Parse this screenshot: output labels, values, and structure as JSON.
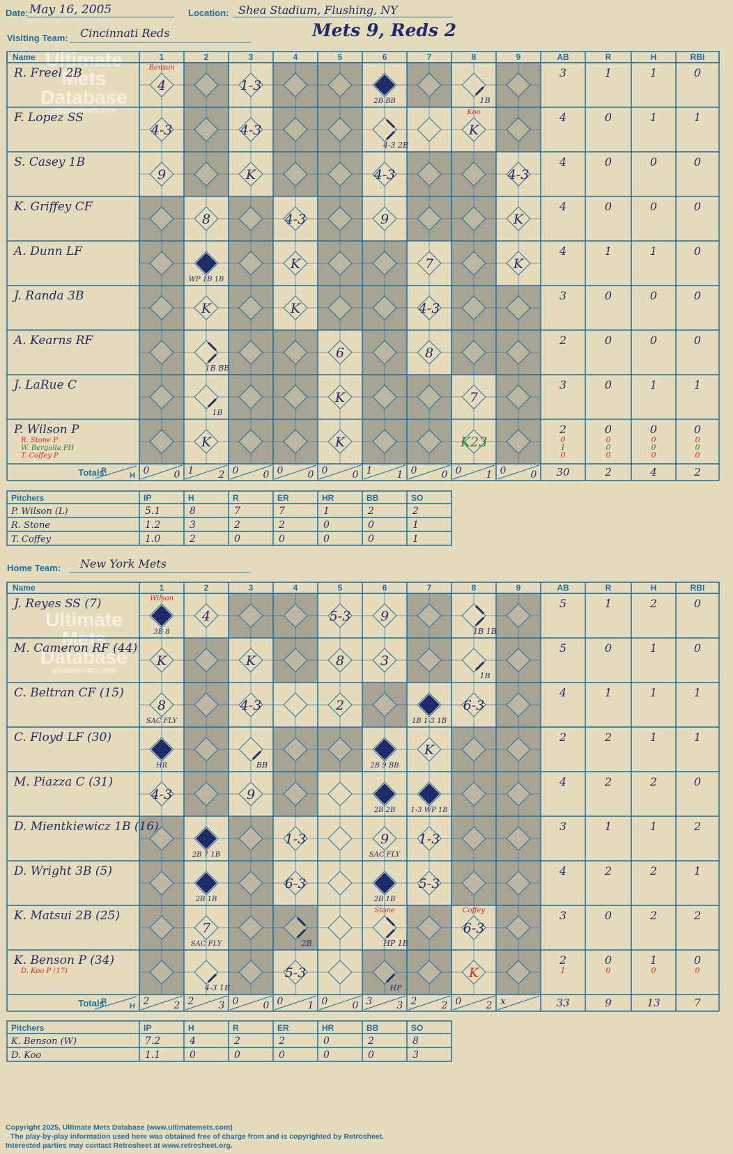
{
  "header": {
    "date_label": "Date:",
    "date": "May 16, 2005",
    "location_label": "Location:",
    "location": "Shea Stadium, Flushing, NY",
    "visiting_label": "Visiting Team:",
    "visiting_team": "Cincinnati Reds",
    "result": "Mets 9, Reds 2",
    "home_label": "Home Team:",
    "home_team": "New York Mets"
  },
  "watermark": {
    "line1": "Ultimate",
    "line2": "Mets",
    "line3": "Database",
    "url": "ultimatemets.com"
  },
  "columns": {
    "name": "Name",
    "innings": [
      "1",
      "2",
      "3",
      "4",
      "5",
      "6",
      "7",
      "8",
      "9"
    ],
    "stats": [
      "AB",
      "R",
      "H",
      "RBI"
    ]
  },
  "totals_label": "Totals:",
  "rh_label": {
    "r": "R",
    "h": "H"
  },
  "pitcher_columns": [
    "Pitchers",
    "IP",
    "H",
    "R",
    "ER",
    "HR",
    "BB",
    "SO"
  ],
  "colors": {
    "background": "#e6dcbc",
    "grid": "#1c6ea4",
    "shaded": "#a8a493",
    "ink": "#1f2c6b",
    "red": "#d62a1e",
    "green": "#2e7d32"
  },
  "visitors": {
    "batters": [
      {
        "name": "R. Freel 2B",
        "ab": "3",
        "r": "1",
        "h": "1",
        "rbi": "0"
      },
      {
        "name": "F. Lopez SS",
        "ab": "4",
        "r": "0",
        "h": "1",
        "rbi": "1"
      },
      {
        "name": "S. Casey 1B",
        "ab": "4",
        "r": "0",
        "h": "0",
        "rbi": "0"
      },
      {
        "name": "K. Griffey CF",
        "ab": "4",
        "r": "0",
        "h": "0",
        "rbi": "0"
      },
      {
        "name": "A. Dunn LF",
        "ab": "4",
        "r": "1",
        "h": "1",
        "rbi": "0"
      },
      {
        "name": "J. Randa 3B",
        "ab": "3",
        "r": "0",
        "h": "0",
        "rbi": "0"
      },
      {
        "name": "A. Kearns RF",
        "ab": "2",
        "r": "0",
        "h": "0",
        "rbi": "0"
      },
      {
        "name": "J. LaRue C",
        "ab": "3",
        "r": "0",
        "h": "1",
        "rbi": "1"
      },
      {
        "name": "P. Wilson P",
        "ab": "2",
        "r": "0",
        "h": "0",
        "rbi": "0",
        "subs": [
          {
            "name": "R. Stone P",
            "color": "red",
            "ab": "0",
            "r": "0",
            "h": "0",
            "rbi": "0"
          },
          {
            "name": "W. Bergolla PH",
            "color": "green",
            "ab": "1",
            "r": "0",
            "h": "0",
            "rbi": "0"
          },
          {
            "name": "T. Coffey P",
            "color": "red",
            "ab": "0",
            "r": "0",
            "h": "0",
            "rbi": "0"
          }
        ]
      }
    ],
    "shaded": [
      [
        2,
        4,
        5,
        7,
        9
      ],
      [
        2,
        4,
        5,
        9
      ],
      [
        2,
        4,
        5,
        7,
        8
      ],
      [
        1,
        3,
        5,
        7,
        8
      ],
      [
        1,
        3,
        5,
        6,
        8
      ],
      [
        1,
        3,
        5,
        6,
        8,
        9
      ],
      [
        1,
        3,
        4,
        6,
        8,
        9
      ],
      [
        1,
        3,
        4,
        6,
        7,
        9
      ],
      [
        1,
        3,
        4,
        6,
        7,
        9
      ]
    ],
    "plays": [
      {
        "row": 0,
        "inn": 1,
        "text": "4",
        "type": "out"
      },
      {
        "row": 0,
        "inn": 1,
        "text": "Benson",
        "type": "note",
        "color": "red"
      },
      {
        "row": 0,
        "inn": 3,
        "text": "1-3",
        "type": "out"
      },
      {
        "row": 0,
        "inn": 6,
        "text": "2B BB",
        "type": "run"
      },
      {
        "row": 0,
        "inn": 8,
        "text": "1B",
        "type": "reach1"
      },
      {
        "row": 1,
        "inn": 1,
        "text": "4-3",
        "type": "out"
      },
      {
        "row": 1,
        "inn": 3,
        "text": "4-3",
        "type": "out"
      },
      {
        "row": 1,
        "inn": 6,
        "text": "4-3 2B",
        "type": "reach2"
      },
      {
        "row": 1,
        "inn": 8,
        "text": "K",
        "type": "out"
      },
      {
        "row": 1,
        "inn": 8,
        "text": "Koo",
        "type": "note",
        "color": "red"
      },
      {
        "row": 2,
        "inn": 1,
        "text": "9",
        "type": "out"
      },
      {
        "row": 2,
        "inn": 3,
        "text": "K",
        "type": "out"
      },
      {
        "row": 2,
        "inn": 6,
        "text": "4-3",
        "type": "out"
      },
      {
        "row": 2,
        "inn": 9,
        "text": "4-3",
        "type": "out"
      },
      {
        "row": 3,
        "inn": 2,
        "text": "8",
        "type": "out"
      },
      {
        "row": 3,
        "inn": 4,
        "text": "4-3",
        "type": "out"
      },
      {
        "row": 3,
        "inn": 6,
        "text": "9",
        "type": "out"
      },
      {
        "row": 3,
        "inn": 9,
        "text": "K",
        "type": "out"
      },
      {
        "row": 4,
        "inn": 2,
        "text": "WP 1B 1B",
        "type": "run"
      },
      {
        "row": 4,
        "inn": 4,
        "text": "K",
        "type": "out"
      },
      {
        "row": 4,
        "inn": 7,
        "text": "7",
        "type": "out"
      },
      {
        "row": 4,
        "inn": 9,
        "text": "K",
        "type": "out"
      },
      {
        "row": 5,
        "inn": 2,
        "text": "K",
        "type": "out"
      },
      {
        "row": 5,
        "inn": 4,
        "text": "K",
        "type": "out"
      },
      {
        "row": 5,
        "inn": 7,
        "text": "4-3",
        "type": "out"
      },
      {
        "row": 6,
        "inn": 2,
        "text": "1B BB",
        "type": "reach2"
      },
      {
        "row": 6,
        "inn": 5,
        "text": "6",
        "type": "out"
      },
      {
        "row": 6,
        "inn": 7,
        "text": "8",
        "type": "out"
      },
      {
        "row": 7,
        "inn": 2,
        "text": "1B",
        "type": "reach1"
      },
      {
        "row": 7,
        "inn": 5,
        "text": "K",
        "type": "out"
      },
      {
        "row": 7,
        "inn": 8,
        "text": "7",
        "type": "out"
      },
      {
        "row": 8,
        "inn": 2,
        "text": "K",
        "type": "out"
      },
      {
        "row": 8,
        "inn": 5,
        "text": "K",
        "type": "out"
      },
      {
        "row": 8,
        "inn": 8,
        "text": "K23",
        "type": "out",
        "color": "green"
      }
    ],
    "inning_totals": [
      [
        "0",
        "0"
      ],
      [
        "1",
        "2"
      ],
      [
        "0",
        "0"
      ],
      [
        "0",
        "0"
      ],
      [
        "0",
        "0"
      ],
      [
        "1",
        "1"
      ],
      [
        "0",
        "0"
      ],
      [
        "0",
        "1"
      ],
      [
        "0",
        "0"
      ]
    ],
    "totals": {
      "ab": "30",
      "r": "2",
      "h": "4",
      "rbi": "2"
    },
    "pitchers": [
      {
        "name": "P. Wilson (L)",
        "ip": "5.1",
        "h": "8",
        "r": "7",
        "er": "7",
        "hr": "1",
        "bb": "2",
        "so": "2"
      },
      {
        "name": "R. Stone",
        "ip": "1.2",
        "h": "3",
        "r": "2",
        "er": "2",
        "hr": "0",
        "bb": "0",
        "so": "1"
      },
      {
        "name": "T. Coffey",
        "ip": "1.0",
        "h": "2",
        "r": "0",
        "er": "0",
        "hr": "0",
        "bb": "0",
        "so": "1"
      }
    ]
  },
  "home": {
    "batters": [
      {
        "name": "J. Reyes SS (7)",
        "ab": "5",
        "r": "1",
        "h": "2",
        "rbi": "0"
      },
      {
        "name": "M. Cameron RF (44)",
        "ab": "5",
        "r": "0",
        "h": "1",
        "rbi": "0"
      },
      {
        "name": "C. Beltran CF (15)",
        "ab": "4",
        "r": "1",
        "h": "1",
        "rbi": "1"
      },
      {
        "name": "C. Floyd LF (30)",
        "ab": "2",
        "r": "2",
        "h": "1",
        "rbi": "1"
      },
      {
        "name": "M. Piazza C (31)",
        "ab": "4",
        "r": "2",
        "h": "2",
        "rbi": "0"
      },
      {
        "name": "D. Mientkiewicz 1B (16)",
        "ab": "3",
        "r": "1",
        "h": "1",
        "rbi": "2"
      },
      {
        "name": "D. Wright 3B (5)",
        "ab": "4",
        "r": "2",
        "h": "2",
        "rbi": "1"
      },
      {
        "name": "K. Matsui 2B (25)",
        "ab": "3",
        "r": "0",
        "h": "2",
        "rbi": "2"
      },
      {
        "name": "K. Benson P (34)",
        "ab": "2",
        "r": "0",
        "h": "1",
        "rbi": "0",
        "subs": [
          {
            "name": "D. Koo P (17)",
            "color": "red",
            "ab": "1",
            "r": "0",
            "h": "0",
            "rbi": "0"
          }
        ]
      }
    ],
    "shaded": [
      [
        3,
        4,
        7,
        9
      ],
      [
        2,
        4,
        7,
        9
      ],
      [
        2,
        6,
        9
      ],
      [
        2,
        4,
        5,
        8,
        9
      ],
      [
        2,
        4,
        8,
        9
      ],
      [
        1,
        3,
        8,
        9
      ],
      [
        1,
        3,
        8,
        9
      ],
      [
        1,
        3,
        4,
        7,
        9
      ],
      [
        1,
        3,
        6,
        7,
        9
      ]
    ],
    "plays": [
      {
        "row": 0,
        "inn": 1,
        "text": "3B 8",
        "type": "run"
      },
      {
        "row": 0,
        "inn": 1,
        "text": "Wilson",
        "type": "note",
        "color": "red"
      },
      {
        "row": 0,
        "inn": 2,
        "text": "4",
        "type": "out"
      },
      {
        "row": 0,
        "inn": 5,
        "text": "5-3",
        "type": "out"
      },
      {
        "row": 0,
        "inn": 6,
        "text": "9",
        "type": "out"
      },
      {
        "row": 0,
        "inn": 8,
        "text": "1B 1B",
        "type": "reach2"
      },
      {
        "row": 1,
        "inn": 1,
        "text": "K",
        "type": "out"
      },
      {
        "row": 1,
        "inn": 3,
        "text": "K",
        "type": "out"
      },
      {
        "row": 1,
        "inn": 5,
        "text": "8",
        "type": "out"
      },
      {
        "row": 1,
        "inn": 6,
        "text": "3",
        "type": "out"
      },
      {
        "row": 1,
        "inn": 8,
        "text": "1B",
        "type": "reach1"
      },
      {
        "row": 2,
        "inn": 1,
        "text": "8",
        "type": "out"
      },
      {
        "row": 2,
        "inn": 1,
        "text": "SAC FLY",
        "type": "sub"
      },
      {
        "row": 2,
        "inn": 3,
        "text": "4-3",
        "type": "out"
      },
      {
        "row": 2,
        "inn": 5,
        "text": "2",
        "type": "out"
      },
      {
        "row": 2,
        "inn": 7,
        "text": "1B 1-3 1B",
        "type": "run"
      },
      {
        "row": 2,
        "inn": 8,
        "text": "6-3",
        "type": "out"
      },
      {
        "row": 3,
        "inn": 1,
        "text": "HR",
        "type": "run"
      },
      {
        "row": 3,
        "inn": 3,
        "text": "BB",
        "type": "reach1"
      },
      {
        "row": 3,
        "inn": 6,
        "text": "2B 9 BB",
        "type": "run"
      },
      {
        "row": 3,
        "inn": 7,
        "text": "K",
        "type": "out"
      },
      {
        "row": 4,
        "inn": 1,
        "text": "4-3",
        "type": "out"
      },
      {
        "row": 4,
        "inn": 3,
        "text": "9",
        "type": "out"
      },
      {
        "row": 4,
        "inn": 6,
        "text": "2B 2B",
        "type": "run"
      },
      {
        "row": 4,
        "inn": 7,
        "text": "1-3 WP 1B",
        "type": "run"
      },
      {
        "row": 5,
        "inn": 2,
        "text": "2B 7 1B",
        "type": "run"
      },
      {
        "row": 5,
        "inn": 4,
        "text": "1-3",
        "type": "out"
      },
      {
        "row": 5,
        "inn": 6,
        "text": "9",
        "type": "out"
      },
      {
        "row": 5,
        "inn": 6,
        "text": "SAC FLY",
        "type": "sub"
      },
      {
        "row": 5,
        "inn": 7,
        "text": "1-3",
        "type": "out"
      },
      {
        "row": 6,
        "inn": 2,
        "text": "2B 1B",
        "type": "run"
      },
      {
        "row": 6,
        "inn": 4,
        "text": "6-3",
        "type": "out"
      },
      {
        "row": 6,
        "inn": 6,
        "text": "2B 1B",
        "type": "run"
      },
      {
        "row": 6,
        "inn": 7,
        "text": "5-3",
        "type": "out"
      },
      {
        "row": 7,
        "inn": 2,
        "text": "7",
        "type": "out"
      },
      {
        "row": 7,
        "inn": 2,
        "text": "SAC FLY",
        "type": "sub"
      },
      {
        "row": 7,
        "inn": 4,
        "text": "2B",
        "type": "reach2"
      },
      {
        "row": 7,
        "inn": 6,
        "text": "HP 1B",
        "type": "reach2"
      },
      {
        "row": 7,
        "inn": 6,
        "text": "Stone",
        "type": "note",
        "color": "red"
      },
      {
        "row": 7,
        "inn": 8,
        "text": "6-3",
        "type": "out"
      },
      {
        "row": 7,
        "inn": 8,
        "text": "Coffey",
        "type": "note",
        "color": "red"
      },
      {
        "row": 8,
        "inn": 2,
        "text": "4-3 1B",
        "type": "reach1"
      },
      {
        "row": 8,
        "inn": 4,
        "text": "5-3",
        "type": "out"
      },
      {
        "row": 8,
        "inn": 6,
        "text": "HP",
        "type": "reach1"
      },
      {
        "row": 8,
        "inn": 8,
        "text": "K",
        "type": "out",
        "color": "red"
      }
    ],
    "inning_totals": [
      [
        "2",
        "2"
      ],
      [
        "2",
        "3"
      ],
      [
        "0",
        "0"
      ],
      [
        "0",
        "1"
      ],
      [
        "0",
        "0"
      ],
      [
        "3",
        "3"
      ],
      [
        "2",
        "2"
      ],
      [
        "0",
        "2"
      ],
      [
        "x",
        ""
      ]
    ],
    "totals": {
      "ab": "33",
      "r": "9",
      "h": "13",
      "rbi": "7"
    },
    "pitchers": [
      {
        "name": "K. Benson (W)",
        "ip": "7.2",
        "h": "4",
        "r": "2",
        "er": "2",
        "hr": "0",
        "bb": "2",
        "so": "8"
      },
      {
        "name": "D. Koo",
        "ip": "1.1",
        "h": "0",
        "r": "0",
        "er": "0",
        "hr": "0",
        "bb": "0",
        "so": "3"
      }
    ]
  },
  "footer": {
    "copyright": "Copyright 2025, Ultimate Mets Database (www.ultimatemets.com)",
    "line2": "The play-by-play information used here was obtained free of charge from and is copyrighted by Retrosheet.",
    "line3": "Interested parties may contact Retrosheet at www.retrosheet.org."
  }
}
